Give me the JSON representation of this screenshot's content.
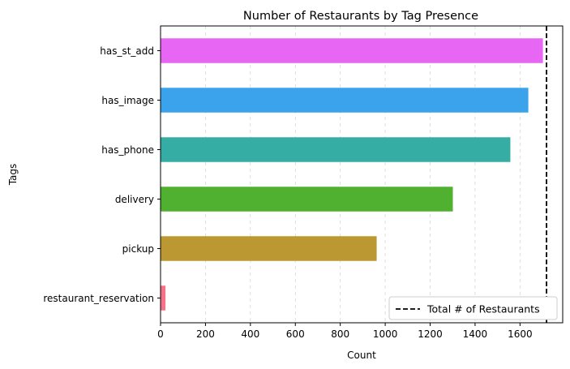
{
  "chart_data": {
    "type": "bar",
    "orientation": "horizontal",
    "title": "Number of Restaurants by Tag Presence",
    "xlabel": "Count",
    "ylabel": "Tags",
    "xlim": [
      0,
      1790
    ],
    "xticks": [
      0,
      200,
      400,
      600,
      800,
      1000,
      1200,
      1400,
      1600
    ],
    "grid": "x-dashed",
    "categories": [
      "restaurant_reservation",
      "pickup",
      "delivery",
      "has_phone",
      "has_image",
      "has_st_add"
    ],
    "values": [
      22,
      962,
      1301,
      1557,
      1637,
      1702
    ],
    "colors": [
      "#f77189",
      "#bb9832",
      "#50b131",
      "#36ada4",
      "#3ba3ec",
      "#e866f4"
    ],
    "reference_line": {
      "value": 1718,
      "label": "Total # of Restaurants",
      "style": "dashed",
      "color": "#000000"
    },
    "legend_position": "lower-right"
  }
}
